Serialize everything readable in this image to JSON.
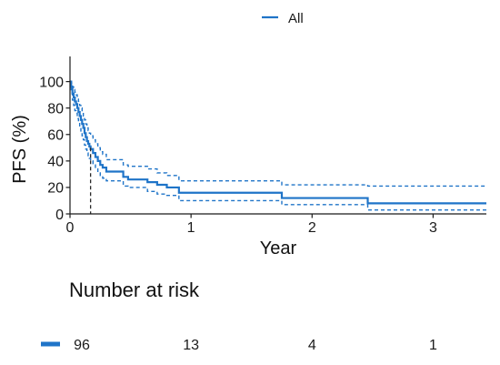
{
  "chart_data": {
    "type": "line",
    "step": true,
    "xlabel": "Year",
    "ylabel": "PFS (%)",
    "xlim": [
      0,
      3.44
    ],
    "ylim": [
      0,
      119
    ],
    "xticks": [
      0,
      1,
      2,
      3
    ],
    "yticks": [
      0,
      20,
      40,
      60,
      80,
      100
    ],
    "grid": false,
    "legend": "top",
    "series": [
      {
        "name": "All",
        "color": "#1f74c8",
        "x": [
          0,
          0.01,
          0.02,
          0.03,
          0.04,
          0.05,
          0.06,
          0.07,
          0.08,
          0.09,
          0.1,
          0.11,
          0.12,
          0.13,
          0.14,
          0.15,
          0.16,
          0.17,
          0.19,
          0.21,
          0.23,
          0.25,
          0.27,
          0.3,
          0.44,
          0.48,
          0.64,
          0.72,
          0.8,
          0.9,
          1.75,
          2.46
        ],
        "y": [
          100,
          96,
          91,
          88,
          85,
          83,
          80,
          77,
          74,
          71,
          68,
          65,
          61,
          58,
          55,
          53,
          51,
          49,
          46,
          43,
          40,
          37,
          35,
          32,
          28,
          26,
          24,
          22,
          20,
          16,
          12,
          8
        ],
        "ci_upper": [
          100,
          99,
          96,
          94,
          92,
          90,
          88,
          85,
          82,
          80,
          77,
          74,
          71,
          68,
          65,
          63,
          61,
          59,
          56,
          53,
          50,
          47,
          45,
          41,
          37,
          36,
          34,
          31,
          29,
          25,
          22,
          21
        ],
        "ci_lower": [
          100,
          92,
          86,
          82,
          78,
          76,
          72,
          69,
          66,
          62,
          59,
          56,
          52,
          49,
          46,
          44,
          42,
          40,
          37,
          34,
          31,
          29,
          27,
          25,
          21,
          20,
          17,
          15,
          14,
          10,
          7,
          3
        ]
      }
    ],
    "median": {
      "x": 0.17,
      "y": 50
    },
    "risk_table": {
      "title": "Number at risk",
      "times": [
        0,
        1,
        2,
        3
      ],
      "rows": [
        {
          "color": "#1f74c8",
          "values": [
            96,
            13,
            4,
            1
          ]
        }
      ]
    }
  }
}
